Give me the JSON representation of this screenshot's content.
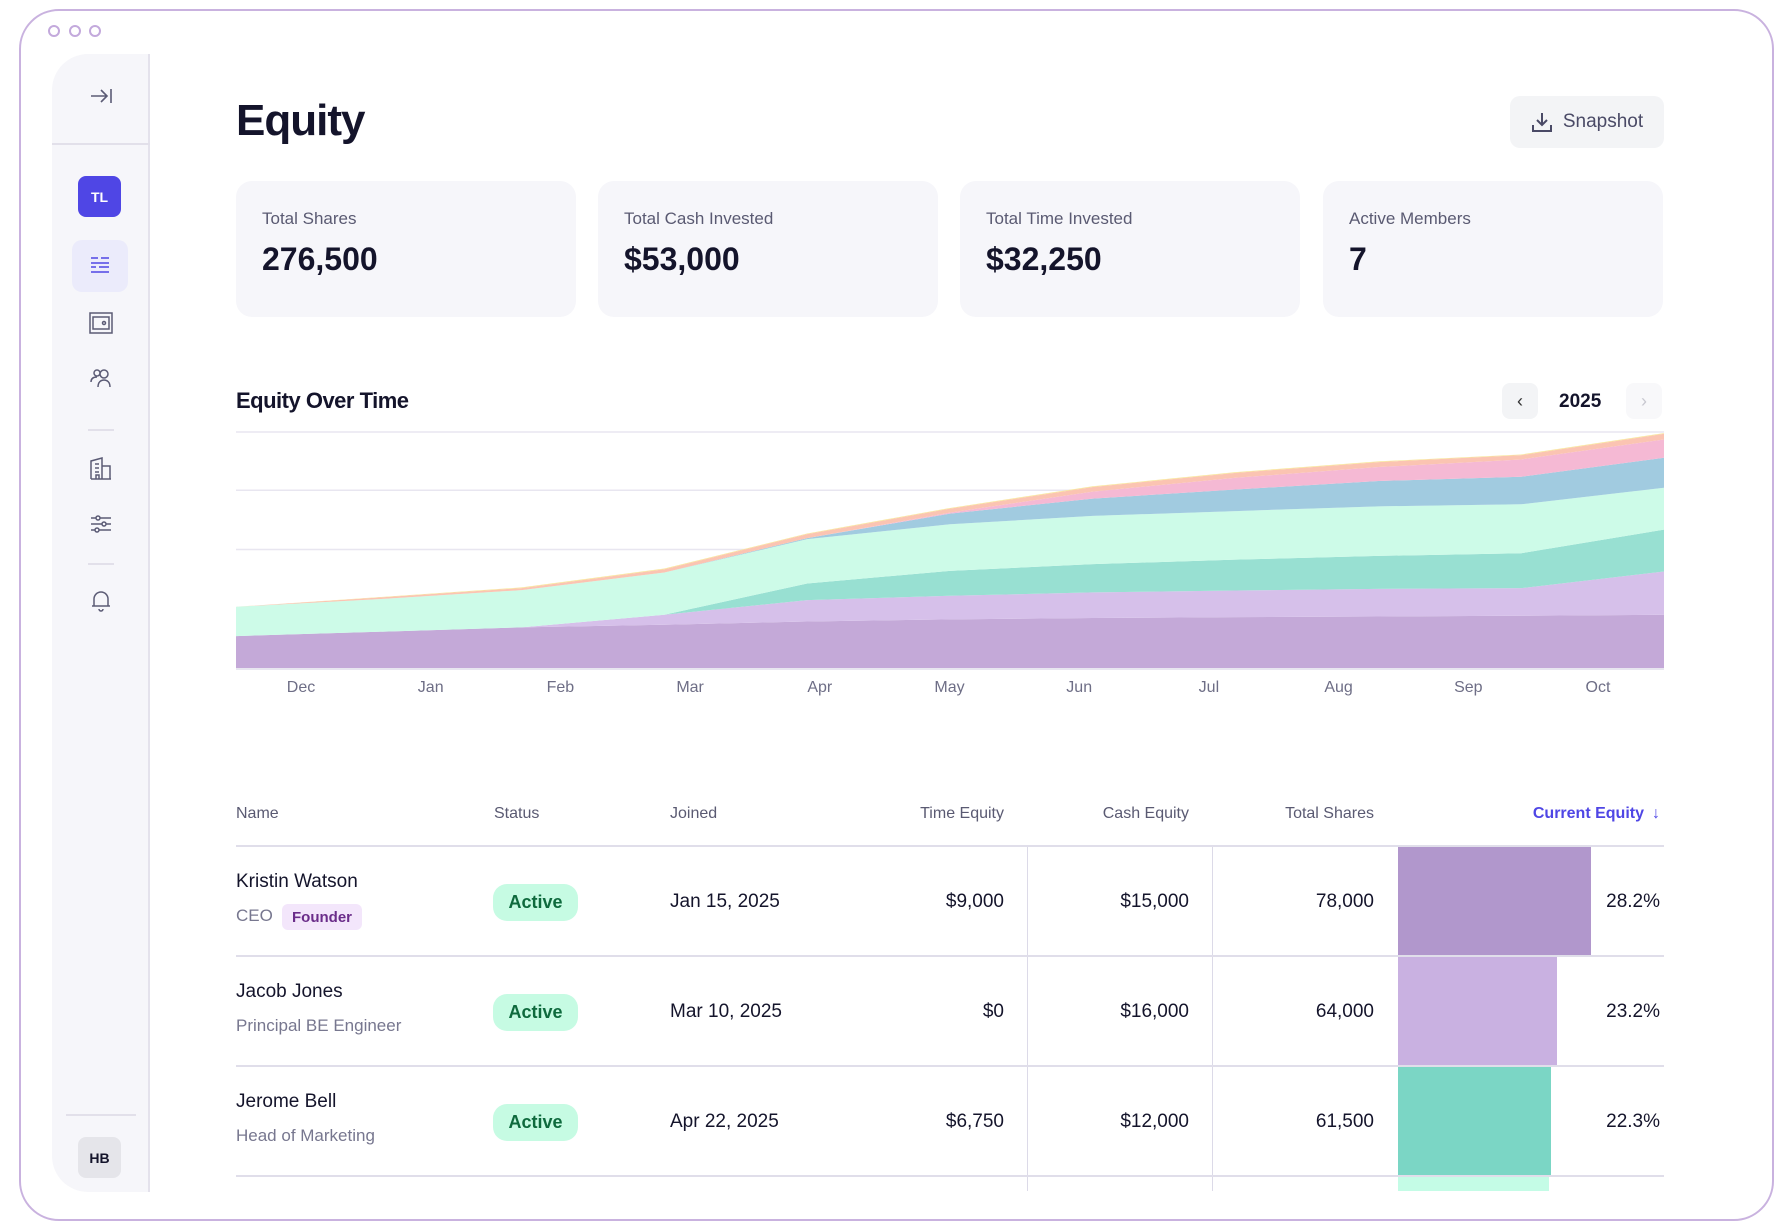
{
  "window": {
    "controls": [
      "dot",
      "dot",
      "dot"
    ]
  },
  "sidebar": {
    "avatar_top": "TL",
    "avatar_bottom": "HB",
    "items": [
      {
        "icon": "collapse-sidebar-icon"
      },
      {
        "icon": "equity-list-icon",
        "active": true
      },
      {
        "icon": "wallet-icon"
      },
      {
        "icon": "users-icon"
      },
      {
        "icon": "building-icon"
      },
      {
        "icon": "sliders-icon"
      },
      {
        "icon": "bell-icon"
      }
    ],
    "active_color": "#4f46e5"
  },
  "header": {
    "title": "Equity",
    "snapshot_label": "Snapshot",
    "snapshot_icon": "download-icon"
  },
  "stats": [
    {
      "label": "Total Shares",
      "value": "276,500"
    },
    {
      "label": "Total Cash Invested",
      "value": "$53,000"
    },
    {
      "label": "Total Time Invested",
      "value": "$32,250"
    },
    {
      "label": "Active Members",
      "value": "7"
    }
  ],
  "chart_section": {
    "title": "Equity Over Time",
    "year": "2025"
  },
  "chart_data": {
    "type": "area",
    "stacked": true,
    "grid": true,
    "x_tick_labels": [
      "Dec",
      "Jan",
      "Feb",
      "Mar",
      "Apr",
      "May",
      "Jun",
      "Jul",
      "Aug",
      "Sep",
      "Oct"
    ],
    "ylim": [
      0,
      280000
    ],
    "series": [
      {
        "color": "#c4a9d8",
        "values": [
          37700,
          42800,
          48000,
          51100,
          55000,
          57400,
          59000,
          60100,
          60900,
          61700,
          62900
        ]
      },
      {
        "color": "#d6c0ea",
        "values": [
          0,
          0,
          0,
          11800,
          25200,
          27900,
          30300,
          31400,
          32600,
          32600,
          51100
        ]
      },
      {
        "color": "#98e0d2",
        "values": [
          0,
          0,
          0,
          0,
          19700,
          29500,
          33400,
          36500,
          38900,
          41300,
          49500
        ]
      },
      {
        "color": "#cdfbe8",
        "values": [
          34600,
          38500,
          44000,
          49900,
          52300,
          55000,
          57000,
          57400,
          58600,
          57800,
          49500
        ]
      },
      {
        "color": "#a1cbe0",
        "values": [
          0,
          0,
          0,
          0,
          1200,
          12600,
          20400,
          25500,
          29900,
          32600,
          35400
        ]
      },
      {
        "color": "#f5b9d4",
        "values": [
          0,
          0,
          0,
          0,
          0,
          1200,
          8300,
          13800,
          16500,
          20400,
          21600
        ]
      },
      {
        "color": "#fbc4b2",
        "values": [
          0,
          2000,
          2400,
          3900,
          4700,
          4700,
          5500,
          5900,
          5900,
          5100,
          6700
        ]
      },
      {
        "color": "#f8e59a",
        "values": [
          0,
          400,
          800,
          800,
          800,
          800,
          800,
          800,
          800,
          800,
          800
        ]
      }
    ]
  },
  "table": {
    "columns": [
      "Name",
      "Status",
      "Joined",
      "Time Equity",
      "Cash Equity",
      "Total Shares",
      "Current Equity"
    ],
    "sort_icon": "arrow-down-icon",
    "accent": "#4f46e5",
    "rows": [
      {
        "name": "Kristin Watson",
        "role": "CEO",
        "tag": "Founder",
        "status": "Active",
        "joined": "Jan 15, 2025",
        "time_equity": "$9,000",
        "cash_equity": "$15,000",
        "total_shares": "78,000",
        "current_equity": "28.2%",
        "equity_pct": 28.2,
        "color": "#b197cc"
      },
      {
        "name": "Jacob Jones",
        "role": "Principal BE Engineer",
        "status": "Active",
        "joined": "Mar 10, 2025",
        "time_equity": "$0",
        "cash_equity": "$16,000",
        "total_shares": "64,000",
        "current_equity": "23.2%",
        "equity_pct": 23.2,
        "color": "#c9b1e1"
      },
      {
        "name": "Jerome Bell",
        "role": "Head of Marketing",
        "status": "Active",
        "joined": "Apr 22, 2025",
        "time_equity": "$6,750",
        "cash_equity": "$12,000",
        "total_shares": "61,500",
        "current_equity": "22.3%",
        "equity_pct": 22.3,
        "color": "#7bd6c5"
      },
      {
        "color": "#c4fce6",
        "equity_pct": 22
      }
    ]
  }
}
